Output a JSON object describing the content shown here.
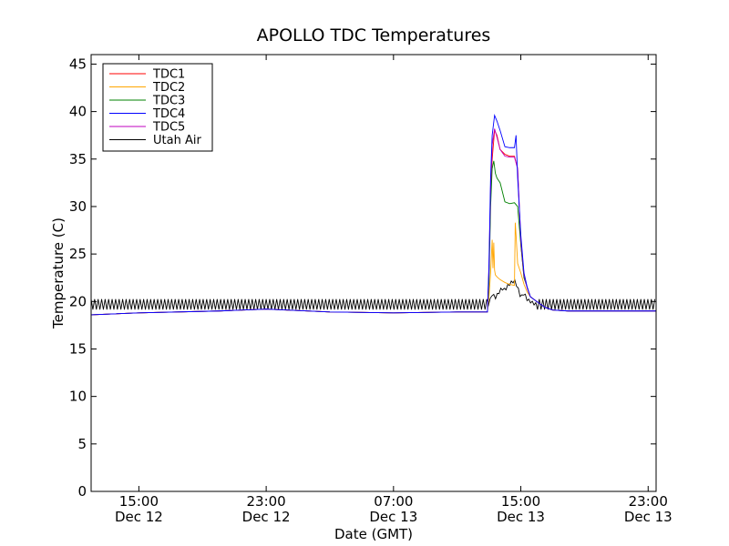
{
  "chart_data": {
    "type": "line",
    "title": "APOLLO TDC Temperatures",
    "xlabel": "Date (GMT)",
    "ylabel": "Temperature (C)",
    "ylim": [
      0,
      46
    ],
    "xlim_hours": [
      12.0,
      47.5
    ],
    "x_unit": "hours since 00:00 GMT Dec 12",
    "grid": false,
    "legend_position": "top-left",
    "y_ticks": [
      0,
      5,
      10,
      15,
      20,
      25,
      30,
      35,
      40,
      45
    ],
    "x_ticks": [
      {
        "hour": 15,
        "line1": "15:00",
        "line2": "Dec 12"
      },
      {
        "hour": 23,
        "line1": "23:00",
        "line2": "Dec 12"
      },
      {
        "hour": 31,
        "line1": "07:00",
        "line2": "Dec 13"
      },
      {
        "hour": 39,
        "line1": "15:00",
        "line2": "Dec 13"
      },
      {
        "hour": 47,
        "line1": "23:00",
        "line2": "Dec 13"
      }
    ],
    "series": [
      {
        "name": "TDC1",
        "color": "#ff0000",
        "x": [
          12.0,
          15.0,
          20.0,
          23.0,
          27.0,
          31.0,
          35.0,
          36.9,
          37.0,
          37.1,
          37.2,
          37.35,
          37.5,
          37.7,
          38.0,
          38.3,
          38.6,
          38.8,
          39.0,
          39.2,
          39.4,
          39.6,
          40.0,
          40.5,
          41.0,
          42.0,
          43.0,
          45.0,
          47.5
        ],
        "y": [
          18.6,
          18.8,
          19.0,
          19.2,
          18.9,
          18.8,
          18.9,
          18.9,
          23.0,
          31.0,
          35.0,
          38.0,
          37.5,
          36.0,
          35.5,
          35.3,
          35.3,
          34.0,
          26.0,
          22.5,
          21.5,
          20.5,
          20.0,
          19.4,
          19.1,
          19.0,
          19.0,
          19.0,
          19.0
        ]
      },
      {
        "name": "TDC2",
        "color": "#ffa500",
        "x": [
          12.0,
          15.0,
          20.0,
          23.0,
          27.0,
          31.0,
          35.0,
          36.9,
          37.0,
          37.1,
          37.2,
          37.25,
          37.3,
          37.35,
          37.4,
          37.5,
          37.7,
          38.0,
          38.3,
          38.6,
          38.65,
          38.7,
          38.8,
          39.0,
          39.2,
          39.4,
          39.6,
          40.0,
          40.5,
          41.0,
          42.0,
          43.0,
          45.0,
          47.5
        ],
        "y": [
          18.6,
          18.8,
          19.0,
          19.2,
          18.9,
          18.8,
          18.9,
          18.9,
          20.5,
          23.0,
          26.5,
          23.5,
          26.2,
          23.3,
          22.8,
          22.6,
          22.3,
          22.0,
          21.8,
          21.7,
          28.3,
          27.0,
          24.0,
          23.0,
          21.8,
          21.0,
          20.5,
          20.0,
          19.4,
          19.1,
          19.0,
          19.0,
          19.0,
          19.0
        ]
      },
      {
        "name": "TDC3",
        "color": "#008000",
        "x": [
          12.0,
          15.0,
          20.0,
          23.0,
          27.0,
          31.0,
          35.0,
          36.9,
          37.0,
          37.1,
          37.2,
          37.3,
          37.4,
          37.5,
          37.7,
          38.0,
          38.3,
          38.6,
          38.8,
          39.0,
          39.2,
          39.4,
          39.6,
          40.0,
          40.5,
          41.0,
          42.0,
          43.0,
          45.0,
          47.5
        ],
        "y": [
          18.6,
          18.8,
          19.0,
          19.2,
          18.9,
          18.8,
          18.9,
          18.9,
          22.0,
          30.0,
          34.0,
          34.8,
          33.5,
          33.0,
          32.5,
          30.5,
          30.3,
          30.4,
          30.0,
          26.0,
          22.5,
          21.5,
          20.5,
          20.0,
          19.4,
          19.1,
          19.0,
          19.0,
          19.0,
          19.0
        ]
      },
      {
        "name": "TDC4",
        "color": "#0000ff",
        "x": [
          12.0,
          15.0,
          20.0,
          23.0,
          27.0,
          31.0,
          35.0,
          36.9,
          37.0,
          37.1,
          37.2,
          37.35,
          37.5,
          37.7,
          38.0,
          38.3,
          38.6,
          38.7,
          38.8,
          39.0,
          39.2,
          39.4,
          39.6,
          40.0,
          40.5,
          41.0,
          42.0,
          43.0,
          45.0,
          47.5
        ],
        "y": [
          18.6,
          18.8,
          19.0,
          19.2,
          18.9,
          18.8,
          18.9,
          18.9,
          24.0,
          33.0,
          37.5,
          39.6,
          39.0,
          38.0,
          36.3,
          36.2,
          36.2,
          37.5,
          33.0,
          27.0,
          23.0,
          21.5,
          20.5,
          20.0,
          19.4,
          19.1,
          19.0,
          19.0,
          19.0,
          19.0
        ]
      },
      {
        "name": "TDC5",
        "color": "#bf00bf",
        "x": [
          12.0,
          15.0,
          20.0,
          23.0,
          27.0,
          31.0,
          35.0,
          36.9,
          37.0,
          37.1,
          37.2,
          37.35,
          37.5,
          37.7,
          38.0,
          38.3,
          38.6,
          38.8,
          39.0,
          39.2,
          39.4,
          39.6,
          40.0,
          40.5,
          41.0,
          42.0,
          43.0,
          45.0,
          47.5
        ],
        "y": [
          18.6,
          18.8,
          19.0,
          19.2,
          18.9,
          18.8,
          18.9,
          18.9,
          23.5,
          32.0,
          36.5,
          38.2,
          37.3,
          36.0,
          35.3,
          35.2,
          35.2,
          34.0,
          26.5,
          22.8,
          21.4,
          20.5,
          20.0,
          19.4,
          19.1,
          19.0,
          19.0,
          19.0,
          19.0
        ]
      },
      {
        "name": "Utah Air",
        "color": "#000000",
        "x": [
          12.0,
          36.9,
          37.0,
          37.2,
          37.4,
          37.6,
          37.8,
          38.0,
          38.2,
          38.4,
          38.6,
          38.8,
          39.0,
          39.2,
          39.4,
          39.6,
          39.8,
          40.0,
          47.5
        ],
        "y": [
          19.7,
          19.7,
          19.8,
          20.8,
          20.4,
          20.9,
          21.4,
          21.2,
          21.7,
          22.0,
          22.2,
          21.5,
          20.4,
          20.9,
          20.2,
          20.0,
          19.8,
          19.7,
          19.7
        ],
        "oscillation_amplitude": 0.55,
        "oscillation_period_hours": 0.22
      }
    ]
  }
}
